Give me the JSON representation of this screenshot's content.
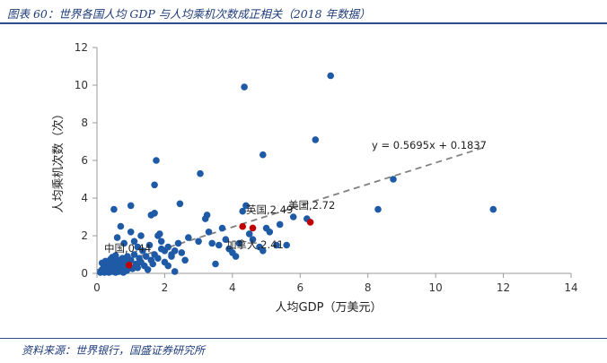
{
  "figure": {
    "title": "图表 60：世界各国人均 GDP 与人均乘机次数成正相关（2018 年数据）",
    "source": "资料来源：世界银行，国盛证券研究所"
  },
  "chart_data": {
    "type": "scatter",
    "xlabel": "人均GDP（万美元）",
    "ylabel": "人均乘机次数（次）",
    "xlim": [
      0,
      14
    ],
    "ylim": [
      0,
      12
    ],
    "x_ticks": [
      "0",
      "2",
      "4",
      "6",
      "8",
      "10",
      "12",
      "14"
    ],
    "y_ticks": [
      "0",
      "2",
      "4",
      "6",
      "8",
      "10",
      "12"
    ],
    "grid": false,
    "trendline": {
      "label": "y = 0.5695x + 0.1837",
      "slope": 0.5695,
      "intercept": 0.1837,
      "x_range": [
        0,
        11.5
      ],
      "style": "dashed",
      "color": "#808080"
    },
    "series_color": "#1f5aa6",
    "highlight_color": "#c00000",
    "points": [
      [
        0.1,
        0.05
      ],
      [
        0.12,
        0.1
      ],
      [
        0.15,
        0.2
      ],
      [
        0.18,
        0.12
      ],
      [
        0.2,
        0.3
      ],
      [
        0.22,
        0.05
      ],
      [
        0.25,
        0.15
      ],
      [
        0.28,
        0.4
      ],
      [
        0.3,
        0.1
      ],
      [
        0.33,
        0.25
      ],
      [
        0.35,
        0.05
      ],
      [
        0.38,
        0.35
      ],
      [
        0.4,
        0.2
      ],
      [
        0.42,
        0.5
      ],
      [
        0.45,
        0.1
      ],
      [
        0.48,
        0.3
      ],
      [
        0.5,
        0.6
      ],
      [
        0.52,
        0.15
      ],
      [
        0.55,
        0.05
      ],
      [
        0.58,
        0.4
      ],
      [
        0.6,
        0.25
      ],
      [
        0.62,
        0.7
      ],
      [
        0.65,
        0.1
      ],
      [
        0.68,
        0.35
      ],
      [
        0.7,
        0.5
      ],
      [
        0.72,
        0.2
      ],
      [
        0.75,
        0.8
      ],
      [
        0.78,
        0.05
      ],
      [
        0.8,
        0.45
      ],
      [
        0.82,
        0.3
      ],
      [
        0.85,
        0.6
      ],
      [
        0.88,
        0.15
      ],
      [
        0.9,
        0.9
      ],
      [
        0.95,
        0.4
      ],
      [
        1.0,
        0.7
      ],
      [
        1.05,
        0.25
      ],
      [
        1.1,
        1.0
      ],
      [
        1.15,
        0.5
      ],
      [
        1.2,
        0.3
      ],
      [
        1.25,
        0.8
      ],
      [
        1.3,
        0.6
      ],
      [
        1.35,
        1.2
      ],
      [
        1.4,
        0.4
      ],
      [
        1.45,
        0.9
      ],
      [
        1.5,
        0.2
      ],
      [
        1.55,
        1.5
      ],
      [
        1.6,
        0.7
      ],
      [
        1.65,
        0.5
      ],
      [
        1.7,
        1.0
      ],
      [
        1.8,
        0.8
      ],
      [
        1.9,
        1.3
      ],
      [
        2.0,
        0.6
      ],
      [
        2.1,
        0.4
      ],
      [
        2.2,
        0.9
      ],
      [
        2.3,
        1.2
      ],
      [
        0.15,
        0.55
      ],
      [
        0.25,
        0.65
      ],
      [
        0.35,
        0.45
      ],
      [
        0.45,
        0.85
      ],
      [
        0.55,
        0.95
      ],
      [
        0.3,
        0.5
      ],
      [
        0.6,
        0.45
      ],
      [
        0.4,
        0.75
      ],
      [
        0.5,
        3.4
      ],
      [
        0.6,
        1.9
      ],
      [
        0.7,
        2.5
      ],
      [
        0.8,
        1.6
      ],
      [
        1.0,
        2.2
      ],
      [
        1.1,
        1.7
      ],
      [
        1.0,
        3.6
      ],
      [
        1.2,
        1.4
      ],
      [
        1.3,
        2.0
      ],
      [
        1.6,
        3.1
      ],
      [
        1.7,
        3.2
      ],
      [
        1.7,
        4.7
      ],
      [
        1.75,
        6.0
      ],
      [
        1.8,
        2.0
      ],
      [
        1.85,
        2.1
      ],
      [
        1.9,
        1.7
      ],
      [
        2.0,
        1.2
      ],
      [
        2.1,
        1.4
      ],
      [
        2.2,
        1.0
      ],
      [
        2.3,
        0.1
      ],
      [
        2.4,
        1.6
      ],
      [
        2.45,
        3.7
      ],
      [
        2.5,
        1.1
      ],
      [
        2.6,
        0.7
      ],
      [
        2.7,
        1.9
      ],
      [
        3.0,
        1.7
      ],
      [
        3.05,
        5.3
      ],
      [
        3.2,
        2.9
      ],
      [
        3.25,
        3.1
      ],
      [
        3.3,
        2.2
      ],
      [
        3.4,
        1.6
      ],
      [
        3.5,
        0.5
      ],
      [
        3.6,
        1.5
      ],
      [
        3.7,
        2.4
      ],
      [
        3.8,
        1.8
      ],
      [
        3.9,
        1.3
      ],
      [
        4.0,
        1.1
      ],
      [
        4.1,
        0.9
      ],
      [
        4.2,
        1.6
      ],
      [
        4.3,
        3.3
      ],
      [
        4.35,
        9.9
      ],
      [
        4.4,
        3.6
      ],
      [
        4.5,
        2.1
      ],
      [
        4.6,
        1.8
      ],
      [
        4.8,
        1.4
      ],
      [
        4.9,
        1.2
      ],
      [
        4.9,
        6.3
      ],
      [
        5.0,
        2.4
      ],
      [
        5.1,
        2.2
      ],
      [
        5.3,
        1.5
      ],
      [
        5.4,
        2.6
      ],
      [
        5.6,
        1.5
      ],
      [
        5.8,
        3.0
      ],
      [
        6.2,
        2.9
      ],
      [
        6.45,
        7.1
      ],
      [
        6.9,
        10.5
      ],
      [
        8.3,
        3.4
      ],
      [
        8.75,
        5.0
      ],
      [
        11.7,
        3.4
      ]
    ],
    "highlight_points": [
      {
        "name": "中国",
        "x": 0.95,
        "y": 0.44,
        "label": "中国,0.44"
      },
      {
        "name": "英国",
        "x": 4.3,
        "y": 2.49,
        "label": "英国,2.49"
      },
      {
        "name": "加拿大",
        "x": 4.6,
        "y": 2.41,
        "label": "加拿大,2.41"
      },
      {
        "name": "美国",
        "x": 6.3,
        "y": 2.72,
        "label": "美国,2.72"
      }
    ]
  }
}
